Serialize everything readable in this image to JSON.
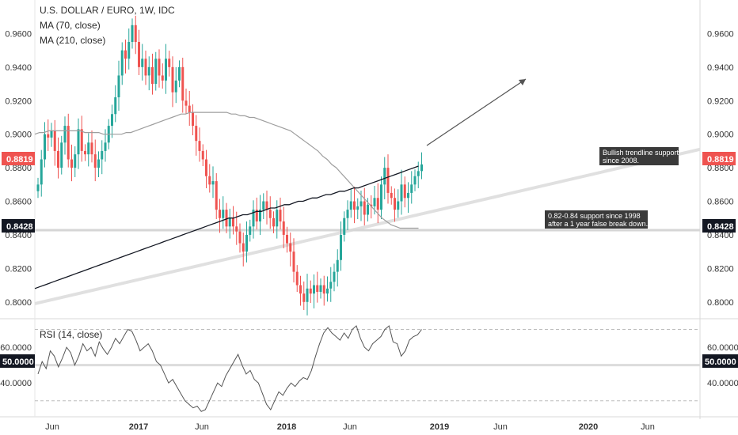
{
  "chart_data": [
    {
      "type": "candlestick",
      "title": "U.S. DOLLAR / EURO, 1W, IDC",
      "ylim": [
        0.79,
        0.98
      ],
      "y_ticks": [
        "0.8000",
        "0.8200",
        "0.8400",
        "0.8600",
        "0.8800",
        "0.9000",
        "0.9200",
        "0.9400",
        "0.9600"
      ],
      "y_tick_values": [
        0.8,
        0.82,
        0.84,
        0.86,
        0.88,
        0.9,
        0.92,
        0.94,
        0.96
      ],
      "x_ticks": [
        "Jun",
        "2017",
        "Jun",
        "2018",
        "Jun",
        "2019",
        "Jun",
        "2020",
        "Jun"
      ],
      "grid": false,
      "current_price": {
        "label": "0.8819",
        "value": 0.8819,
        "color": "#ef5350"
      },
      "support_price": {
        "label": "0.8428",
        "value": 0.8428,
        "color": "#131722"
      },
      "up_color": "#26a69a",
      "down_color": "#ef5350",
      "closes": [
        0.87,
        0.885,
        0.9,
        0.898,
        0.902,
        0.89,
        0.88,
        0.895,
        0.905,
        0.885,
        0.88,
        0.888,
        0.903,
        0.89,
        0.888,
        0.895,
        0.888,
        0.88,
        0.885,
        0.89,
        0.895,
        0.905,
        0.912,
        0.922,
        0.935,
        0.95,
        0.945,
        0.955,
        0.965,
        0.955,
        0.94,
        0.945,
        0.935,
        0.94,
        0.93,
        0.945,
        0.935,
        0.932,
        0.945,
        0.94,
        0.925,
        0.932,
        0.94,
        0.92,
        0.917,
        0.913,
        0.905,
        0.896,
        0.89,
        0.885,
        0.875,
        0.87,
        0.872,
        0.855,
        0.85,
        0.855,
        0.845,
        0.85,
        0.845,
        0.842,
        0.835,
        0.83,
        0.84,
        0.845,
        0.855,
        0.848,
        0.855,
        0.86,
        0.855,
        0.85,
        0.845,
        0.855,
        0.848,
        0.84,
        0.835,
        0.83,
        0.818,
        0.81,
        0.805,
        0.8,
        0.808,
        0.805,
        0.81,
        0.806,
        0.81,
        0.805,
        0.808,
        0.812,
        0.818,
        0.825,
        0.84,
        0.85,
        0.855,
        0.86,
        0.855,
        0.857,
        0.86,
        0.852,
        0.858,
        0.857,
        0.862,
        0.855,
        0.87,
        0.88,
        0.865,
        0.862,
        0.855,
        0.86,
        0.87,
        0.862,
        0.865,
        0.87,
        0.875,
        0.878,
        0.882
      ],
      "series": [
        {
          "name": "MA (70, close)",
          "color": "#9e9e9e",
          "values": [
            0.9,
            0.901,
            0.901,
            0.902,
            0.902,
            0.902,
            0.902,
            0.902,
            0.902,
            0.902,
            0.902,
            0.901,
            0.901,
            0.901,
            0.901,
            0.9,
            0.9,
            0.9,
            0.9,
            0.9,
            0.901,
            0.901,
            0.902,
            0.903,
            0.904,
            0.905,
            0.906,
            0.907,
            0.908,
            0.909,
            0.91,
            0.911,
            0.912,
            0.912,
            0.913,
            0.913,
            0.913,
            0.913,
            0.913,
            0.913,
            0.913,
            0.913,
            0.913,
            0.912,
            0.912,
            0.911,
            0.911,
            0.91,
            0.91,
            0.909,
            0.908,
            0.907,
            0.906,
            0.905,
            0.904,
            0.903,
            0.902,
            0.9,
            0.898,
            0.896,
            0.894,
            0.892,
            0.89,
            0.887,
            0.885,
            0.882,
            0.88,
            0.877,
            0.874,
            0.871,
            0.868,
            0.865,
            0.862,
            0.859,
            0.856,
            0.853,
            0.85,
            0.848,
            0.846,
            0.845,
            0.844,
            0.844,
            0.844,
            0.844,
            0.844
          ]
        },
        {
          "name": "MA (210, close)",
          "color": "#131722",
          "values": [
            0.808,
            0.809,
            0.81,
            0.811,
            0.812,
            0.813,
            0.814,
            0.815,
            0.816,
            0.817,
            0.818,
            0.819,
            0.82,
            0.821,
            0.822,
            0.823,
            0.824,
            0.825,
            0.826,
            0.827,
            0.828,
            0.829,
            0.83,
            0.831,
            0.832,
            0.833,
            0.834,
            0.835,
            0.836,
            0.837,
            0.838,
            0.839,
            0.84,
            0.841,
            0.842,
            0.843,
            0.844,
            0.845,
            0.846,
            0.847,
            0.848,
            0.849,
            0.85,
            0.85,
            0.851,
            0.852,
            0.852,
            0.853,
            0.854,
            0.854,
            0.855,
            0.856,
            0.856,
            0.857,
            0.858,
            0.858,
            0.859,
            0.86,
            0.86,
            0.861,
            0.862,
            0.862,
            0.863,
            0.864,
            0.864,
            0.865,
            0.866,
            0.866,
            0.867,
            0.868,
            0.868,
            0.869,
            0.87,
            0.871,
            0.872,
            0.873,
            0.874,
            0.875,
            0.876,
            0.877,
            0.878,
            0.879,
            0.88,
            0.881
          ]
        }
      ],
      "trendline": {
        "from_value": 0.799,
        "to_value": 0.891,
        "color": "#e0e0e0"
      },
      "arrow_color": "#555555",
      "annotations": [
        {
          "text": [
            "Bullish trendline support",
            "since 2008."
          ]
        },
        {
          "text": [
            "0.82-0.84 support since 1998",
            "after a 1 year false break down."
          ]
        }
      ],
      "legend": [
        "MA (70, close)",
        "MA (210, close)"
      ]
    },
    {
      "type": "line",
      "title": "RSI (14, close)",
      "ylim": [
        21,
        76
      ],
      "y_ticks": [
        "40.0000",
        "60.0000"
      ],
      "y_tick_values": [
        40,
        60
      ],
      "midline": {
        "label": "50.0000",
        "value": 50
      },
      "bands": [
        30,
        70
      ],
      "series": [
        {
          "name": "RSI (14, close)",
          "color": "#555555",
          "values": [
            45,
            52,
            48,
            58,
            55,
            49,
            54,
            60,
            57,
            50,
            55,
            62,
            58,
            60,
            55,
            63,
            59,
            56,
            60,
            65,
            62,
            66,
            70,
            69,
            64,
            58,
            60,
            62,
            58,
            52,
            50,
            45,
            40,
            42,
            38,
            34,
            30,
            28,
            26,
            27,
            24,
            25,
            30,
            35,
            40,
            38,
            44,
            48,
            52,
            56,
            50,
            45,
            47,
            42,
            40,
            34,
            28,
            25,
            30,
            35,
            33,
            37,
            40,
            38,
            41,
            43,
            42,
            47,
            55,
            62,
            68,
            71,
            68,
            66,
            64,
            68,
            65,
            70,
            72,
            65,
            60,
            58,
            62,
            64,
            66,
            70,
            72,
            63,
            62,
            55,
            58,
            64,
            66,
            67,
            70
          ]
        }
      ]
    }
  ]
}
